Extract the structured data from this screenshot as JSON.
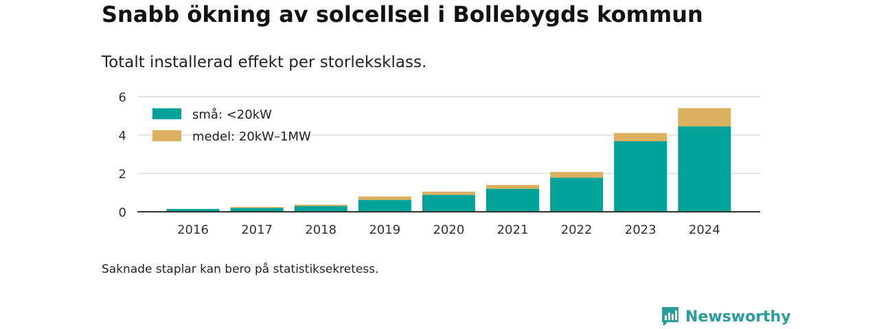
{
  "header": {
    "title": "Snabb ökning av solcellsel i Bollebygds kommun",
    "subtitle": "Totalt installerad effekt per storleksklass."
  },
  "footer": {
    "note": "Saknade staplar kan bero på statistiksekretess.",
    "brand": "Newsworthy"
  },
  "colors": {
    "small": "#00a39a",
    "medium": "#dbb05e",
    "grid": "#dddddd",
    "axis": "#333333",
    "brand": "#2a9d9a"
  },
  "chart_data": {
    "type": "bar",
    "stacked": true,
    "categories": [
      "2016",
      "2017",
      "2018",
      "2019",
      "2020",
      "2021",
      "2022",
      "2023",
      "2024"
    ],
    "series": [
      {
        "name": "små: <20kW",
        "color": "#00a39a",
        "values": [
          0.15,
          0.2,
          0.3,
          0.62,
          0.88,
          1.2,
          1.78,
          3.68,
          4.45
        ]
      },
      {
        "name": "medel: 20kW–1MW",
        "color": "#dbb05e",
        "values": [
          0.0,
          0.05,
          0.07,
          0.18,
          0.17,
          0.2,
          0.3,
          0.42,
          0.95
        ]
      }
    ],
    "ylim": [
      0,
      6
    ],
    "yticks": [
      0,
      2,
      4,
      6
    ],
    "grid": true,
    "legend_position": "top-left"
  }
}
